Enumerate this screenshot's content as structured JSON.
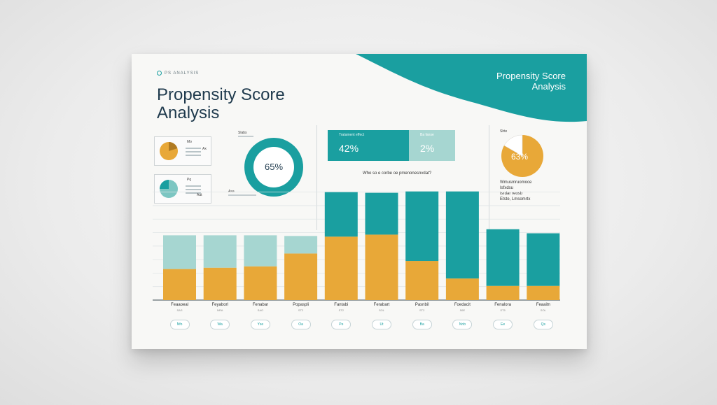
{
  "header": {
    "kicker": "PS ANALYSIS",
    "title_line1": "Propensity Score",
    "title_line2": "Analysis",
    "top_title_line1": "Propensity Score",
    "top_title_line2": "Analysis"
  },
  "mini_pie_1": {
    "values": [
      30,
      70
    ],
    "legend": [
      "Mo",
      "Ax"
    ]
  },
  "mini_pie_2": {
    "values": [
      25,
      75
    ],
    "legend": [
      "Pq",
      "Aat"
    ]
  },
  "donut": {
    "label": "65%",
    "caption_top": "Slabs",
    "caption_bottom": "Asa",
    "value": 65
  },
  "kpis": [
    {
      "value": "42%",
      "caption": "Tratament effect"
    },
    {
      "value": "2%",
      "caption": "Ba fanse"
    }
  ],
  "question": "Who so e corbe oe pmenonesnvdat?",
  "right_pie": {
    "label": "63%",
    "value": 63,
    "caption": "Slrte",
    "lines": [
      "Wmusmruomoce",
      "Isfxdsu",
      "tsrdar reosb",
      "Etste, Lmsomrtx"
    ]
  },
  "colors": {
    "teal": "#1a9fa0",
    "light_teal": "#a6d6d1",
    "gold": "#e8a838"
  },
  "chart_data": {
    "type": "bar",
    "stacked": true,
    "categories": [
      "Feaaoeal",
      "Feyaborl",
      "Fenabar",
      "Popaspli",
      "Fantabi",
      "Ferabart",
      "Pasnbil",
      "Foedacit",
      "Fenalora",
      "Feaaitn"
    ],
    "subcategories": [
      "SAS",
      "NRA",
      "SAO",
      "ST2",
      "ST2",
      "SOL",
      "ST2",
      "S6E",
      "ST5",
      "SOL"
    ],
    "series": [
      {
        "values": [
          46,
          48,
          50,
          69,
          94,
          97,
          58,
          32,
          21,
          21
        ]
      },
      {
        "values": [
          50,
          48,
          46,
          26,
          66,
          62,
          103,
          129,
          84,
          78
        ]
      }
    ],
    "ylim": [
      0,
      170
    ],
    "grid": true,
    "badges": [
      "Nfo",
      "Wa",
      "Yse",
      "Oa",
      "Pe",
      "Ut",
      "Ba",
      "Nnb",
      "Ee",
      "Qs"
    ]
  }
}
